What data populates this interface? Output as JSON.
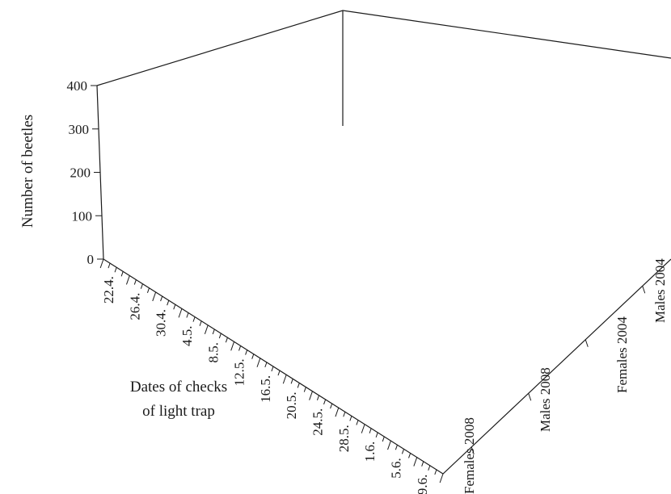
{
  "chart_data": {
    "type": "bar",
    "subtype": "3d-bar",
    "zlabel": "Number of beetles",
    "xlabel": [
      "Dates of checks",
      "of  light trap"
    ],
    "zlim": [
      0,
      400
    ],
    "z_ticks": [
      "0",
      "100",
      "200",
      "300",
      "400"
    ],
    "x_tick_labels": [
      "22.4.",
      "26.4.",
      "30.4.",
      "4.5.",
      "8.5.",
      "12.5.",
      "16.5.",
      "20.5.",
      "24.5.",
      "28.5.",
      "1.6.",
      "5.6.",
      "9.6."
    ],
    "bar_fill": "#9a9a9a",
    "bar_highlight": "#ffffff",
    "series": [
      {
        "name": "Females 2008",
        "values": [
          0,
          0,
          0,
          0,
          0,
          0,
          0,
          0,
          0,
          0,
          0,
          0,
          0,
          0,
          0,
          0,
          0,
          0,
          0,
          0,
          0,
          0,
          0,
          0,
          0,
          0,
          0,
          0,
          0,
          0,
          0,
          0,
          0,
          0,
          0,
          0,
          0,
          0,
          0,
          0,
          0,
          0,
          0,
          0,
          0,
          0,
          0,
          0,
          0,
          0,
          0,
          0
        ]
      },
      {
        "name": "Males 2008",
        "values": [
          0,
          0,
          0,
          0,
          0,
          0,
          0,
          0,
          0,
          0,
          0,
          0,
          0,
          0,
          0,
          0,
          0,
          0,
          0,
          0,
          0,
          0,
          0,
          0,
          0,
          0,
          0,
          0,
          0,
          0,
          0,
          0,
          0,
          0,
          0,
          0,
          0,
          0,
          0,
          0,
          0,
          0,
          0,
          0,
          0,
          0,
          0,
          0,
          0,
          0,
          0,
          0
        ]
      },
      {
        "name": "Females 2004",
        "values": [
          0,
          0,
          0,
          0,
          0,
          0,
          0,
          0,
          0,
          0,
          0,
          0,
          0,
          0,
          0,
          0,
          0,
          0,
          0,
          0,
          0,
          0,
          0,
          0,
          0,
          0,
          0,
          0,
          0,
          0,
          0,
          0,
          0,
          0,
          0,
          0,
          0,
          0,
          0,
          0,
          0,
          0,
          0,
          0,
          0,
          0,
          0,
          0,
          0,
          0,
          0,
          0
        ]
      },
      {
        "name": "Males 2004",
        "values": [
          0,
          0,
          0,
          0,
          0,
          0,
          0,
          0,
          0,
          0,
          0,
          0,
          0,
          0,
          0,
          0,
          0,
          0,
          0,
          0,
          0,
          0,
          0,
          0,
          0,
          0,
          0,
          0,
          0,
          0,
          0,
          0,
          0,
          0,
          0,
          0,
          0,
          0,
          0,
          0,
          0,
          0,
          0,
          0,
          0,
          0,
          0,
          0,
          0,
          0,
          0,
          0
        ]
      }
    ]
  }
}
